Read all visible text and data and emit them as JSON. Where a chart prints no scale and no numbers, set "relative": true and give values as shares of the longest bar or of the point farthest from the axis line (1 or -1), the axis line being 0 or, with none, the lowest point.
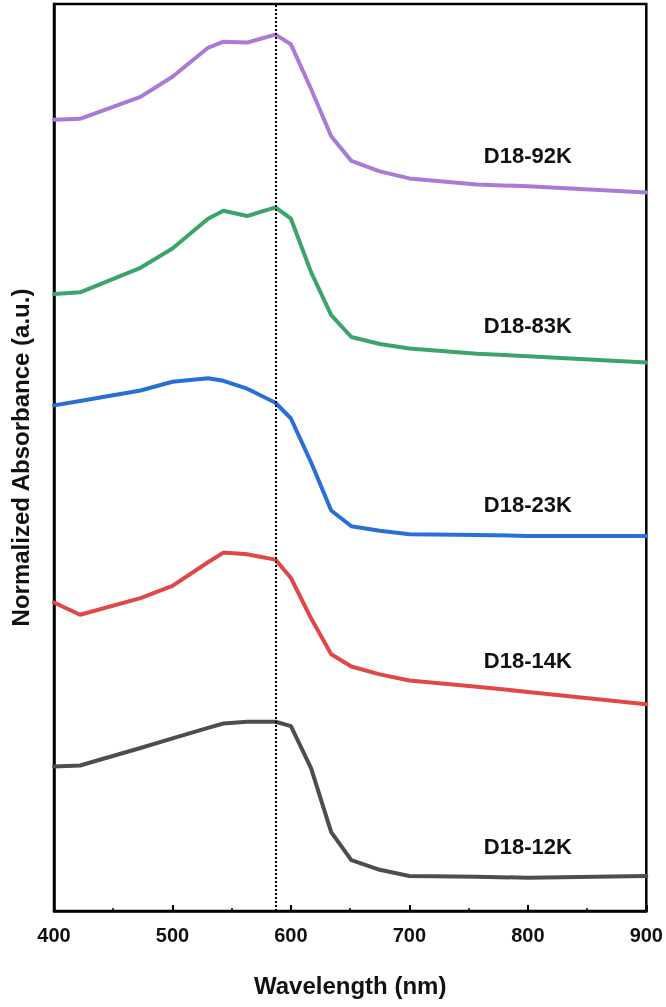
{
  "chart_data": {
    "type": "line",
    "xlabel": "Wavelength (nm)",
    "ylabel": "Normalized Absorbance (a.u.)",
    "relative": true,
    "xlim": [
      400,
      900
    ],
    "xticks": [
      400,
      500,
      600,
      700,
      800,
      900
    ],
    "grid": false,
    "legend": false,
    "marker": "none",
    "line_style": "solid",
    "ref_lines": [
      {
        "axis": "x",
        "value": 587,
        "label": null,
        "color": "#000000",
        "line_style": "dotted"
      }
    ],
    "series": [
      {
        "name": "D18-92K",
        "color": "#a97bd6",
        "x": [
          400,
          422,
          473,
          500,
          530,
          543,
          563,
          587,
          600,
          617,
          634,
          651,
          675,
          700,
          757,
          800,
          900
        ],
        "values": [
          0.903,
          0.904,
          0.929,
          0.952,
          0.985,
          0.992,
          0.991,
          1,
          0.989,
          0.938,
          0.884,
          0.856,
          0.844,
          0.836,
          0.829,
          0.827,
          0.82
        ]
      },
      {
        "name": "D18-83K",
        "color": "#3ba46a",
        "x": [
          400,
          422,
          473,
          500,
          530,
          543,
          563,
          587,
          600,
          617,
          634,
          651,
          675,
          700,
          757,
          800,
          900
        ],
        "values": [
          0.704,
          0.706,
          0.734,
          0.756,
          0.79,
          0.799,
          0.793,
          0.803,
          0.79,
          0.729,
          0.68,
          0.655,
          0.647,
          0.642,
          0.636,
          0.633,
          0.626
        ]
      },
      {
        "name": "D18-23K",
        "color": "#2a6fd6",
        "x": [
          400,
          422,
          473,
          500,
          530,
          543,
          563,
          587,
          600,
          617,
          634,
          651,
          675,
          700,
          757,
          800,
          900
        ],
        "values": [
          0.577,
          0.582,
          0.594,
          0.604,
          0.608,
          0.605,
          0.596,
          0.58,
          0.562,
          0.512,
          0.457,
          0.439,
          0.434,
          0.43,
          0.429,
          0.428,
          0.428
        ]
      },
      {
        "name": "D18-14K",
        "color": "#e04848",
        "x": [
          400,
          422,
          473,
          500,
          530,
          543,
          563,
          587,
          600,
          617,
          634,
          651,
          675,
          700,
          757,
          800,
          900
        ],
        "values": [
          0.352,
          0.338,
          0.357,
          0.371,
          0.398,
          0.409,
          0.407,
          0.401,
          0.38,
          0.334,
          0.293,
          0.279,
          0.27,
          0.263,
          0.256,
          0.25,
          0.236
        ]
      },
      {
        "name": "D18-12K",
        "color": "#4d4d4d",
        "x": [
          400,
          422,
          473,
          500,
          530,
          543,
          563,
          587,
          600,
          617,
          634,
          651,
          675,
          700,
          757,
          800,
          900
        ],
        "values": [
          0.165,
          0.166,
          0.186,
          0.197,
          0.209,
          0.214,
          0.216,
          0.216,
          0.211,
          0.163,
          0.09,
          0.058,
          0.047,
          0.04,
          0.039,
          0.038,
          0.04
        ]
      }
    ]
  }
}
